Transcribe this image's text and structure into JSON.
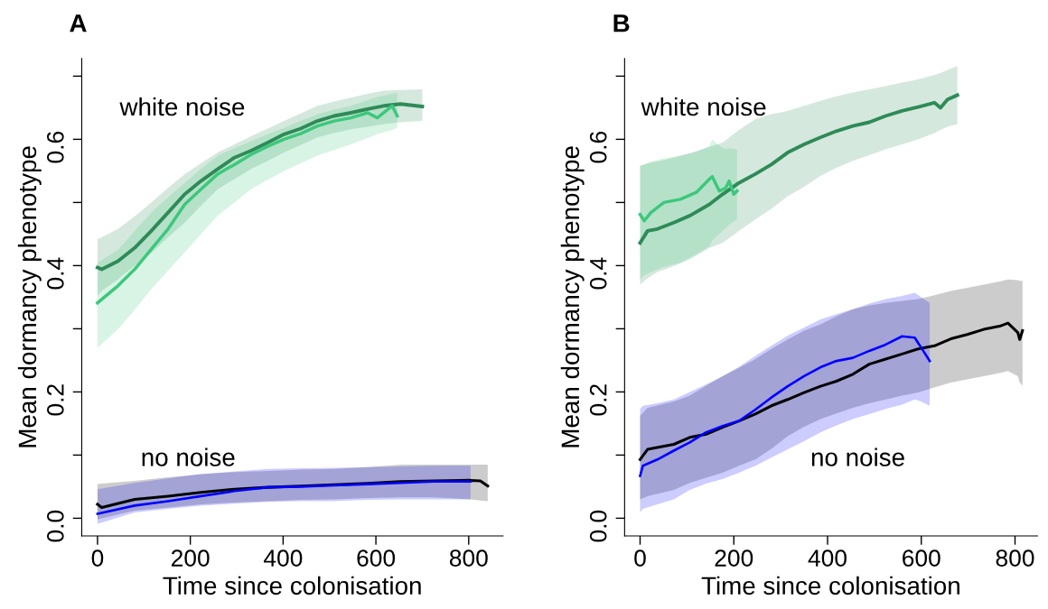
{
  "chart_data": [
    {
      "type": "line",
      "title": "A",
      "xlabel": "Time since colonisation",
      "ylabel": "Mean dormancy phenotype",
      "xlim": [
        -34,
        874
      ],
      "ylim": [
        -0.028,
        0.728
      ],
      "xticks": [
        0,
        200,
        400,
        600,
        800
      ],
      "yticks": [
        {
          "value": 0,
          "label": "0.0"
        },
        {
          "value": 0.1,
          "label": null
        },
        {
          "value": 0.2,
          "label": "0.2"
        },
        {
          "value": 0.3,
          "label": null
        },
        {
          "value": 0.4,
          "label": "0.4"
        },
        {
          "value": 0.5,
          "label": null
        },
        {
          "value": 0.6,
          "label": "0.6"
        },
        {
          "value": 0.7,
          "label": null
        }
      ],
      "grid": false,
      "legend": false,
      "annotations": [
        "white noise",
        "no noise"
      ],
      "series": [
        {
          "color": "#2e8b57",
          "x": [
            0,
            9,
            44,
            80,
            116,
            152,
            188,
            223,
            259,
            295,
            331,
            367,
            402,
            438,
            474,
            510,
            546,
            582,
            617,
            653,
            700
          ],
          "values": [
            0.397,
            0.394,
            0.407,
            0.428,
            0.455,
            0.484,
            0.513,
            0.534,
            0.553,
            0.571,
            0.582,
            0.595,
            0.608,
            0.617,
            0.629,
            0.637,
            0.642,
            0.648,
            0.653,
            0.656,
            0.652
          ],
          "lower": [
            0.352,
            0.36,
            0.378,
            0.4,
            0.42,
            0.445,
            0.468,
            0.495,
            0.521,
            0.537,
            0.553,
            0.566,
            0.579,
            0.591,
            0.603,
            0.61,
            0.616,
            0.62,
            0.624,
            0.627,
            0.629
          ],
          "upper": [
            0.442,
            0.445,
            0.458,
            0.478,
            0.5,
            0.523,
            0.545,
            0.562,
            0.579,
            0.592,
            0.605,
            0.617,
            0.629,
            0.641,
            0.653,
            0.66,
            0.666,
            0.672,
            0.677,
            0.678,
            0.679
          ]
        },
        {
          "color": "#3cc87c",
          "x": [
            0,
            44,
            80,
            116,
            152,
            188,
            223,
            259,
            295,
            331,
            367,
            402,
            438,
            474,
            510,
            546,
            582,
            603,
            635,
            646
          ],
          "values": [
            0.341,
            0.368,
            0.394,
            0.426,
            0.458,
            0.497,
            0.521,
            0.545,
            0.56,
            0.576,
            0.589,
            0.6,
            0.609,
            0.621,
            0.629,
            0.634,
            0.642,
            0.634,
            0.653,
            0.637
          ],
          "lower": [
            0.27,
            0.299,
            0.33,
            0.363,
            0.392,
            0.421,
            0.45,
            0.479,
            0.5,
            0.521,
            0.536,
            0.55,
            0.562,
            0.574,
            0.583,
            0.592,
            0.602,
            0.608,
            0.615,
            0.618
          ],
          "upper": [
            0.405,
            0.425,
            0.455,
            0.484,
            0.508,
            0.531,
            0.553,
            0.574,
            0.586,
            0.597,
            0.608,
            0.618,
            0.629,
            0.64,
            0.647,
            0.653,
            0.662,
            0.667,
            0.672,
            0.674
          ]
        },
        {
          "color": "#000000",
          "x": [
            0,
            9,
            80,
            152,
            223,
            295,
            367,
            438,
            510,
            582,
            653,
            725,
            804,
            825,
            841
          ],
          "values": [
            0.022,
            0.017,
            0.03,
            0.035,
            0.041,
            0.046,
            0.049,
            0.051,
            0.053,
            0.055,
            0.058,
            0.059,
            0.06,
            0.059,
            0.051
          ],
          "lower": [
            -0.002,
            0.0,
            0.012,
            0.017,
            0.022,
            0.025,
            0.027,
            0.029,
            0.03,
            0.032,
            0.033,
            0.033,
            0.03,
            0.028,
            0.027
          ],
          "upper": [
            0.054,
            0.055,
            0.059,
            0.065,
            0.07,
            0.073,
            0.075,
            0.077,
            0.078,
            0.081,
            0.085,
            0.085,
            0.085,
            0.085,
            0.085
          ]
        },
        {
          "color": "#0000ff",
          "x": [
            0,
            80,
            152,
            223,
            295,
            367,
            438,
            510,
            582,
            653,
            725,
            804
          ],
          "values": [
            0.007,
            0.02,
            0.027,
            0.035,
            0.043,
            0.049,
            0.05,
            0.052,
            0.054,
            0.056,
            0.058,
            0.058
          ],
          "lower": [
            -0.009,
            0.009,
            0.015,
            0.02,
            0.023,
            0.026,
            0.027,
            0.027,
            0.029,
            0.03,
            0.03,
            0.03
          ],
          "upper": [
            0.046,
            0.056,
            0.063,
            0.07,
            0.074,
            0.078,
            0.079,
            0.08,
            0.081,
            0.082,
            0.083,
            0.083
          ]
        }
      ]
    },
    {
      "type": "line",
      "title": "B",
      "xlabel": "Time since colonisation",
      "ylabel": "Mean dormancy phenotype",
      "xlim": [
        -33,
        848
      ],
      "ylim": [
        -0.028,
        0.728
      ],
      "xticks": [
        0,
        200,
        400,
        600,
        800
      ],
      "yticks": [
        {
          "value": 0,
          "label": "0.0"
        },
        {
          "value": 0.1,
          "label": null
        },
        {
          "value": 0.2,
          "label": "0.2"
        },
        {
          "value": 0.3,
          "label": null
        },
        {
          "value": 0.4,
          "label": "0.4"
        },
        {
          "value": 0.5,
          "label": null
        },
        {
          "value": 0.6,
          "label": "0.6"
        },
        {
          "value": 0.7,
          "label": null
        }
      ],
      "grid": false,
      "legend": false,
      "annotations": [
        "white noise",
        "no noise"
      ],
      "series": [
        {
          "color": "#2e8b57",
          "x": [
            0,
            16,
            37,
            72,
            106,
            148,
            176,
            211,
            246,
            280,
            315,
            350,
            385,
            419,
            454,
            489,
            524,
            559,
            593,
            628,
            641,
            656,
            677
          ],
          "values": [
            0.436,
            0.455,
            0.458,
            0.468,
            0.479,
            0.497,
            0.513,
            0.531,
            0.545,
            0.56,
            0.579,
            0.592,
            0.603,
            0.613,
            0.621,
            0.627,
            0.637,
            0.645,
            0.651,
            0.658,
            0.65,
            0.663,
            0.67
          ],
          "lower": [
            0.37,
            0.38,
            0.39,
            0.399,
            0.41,
            0.428,
            0.436,
            0.455,
            0.473,
            0.49,
            0.51,
            0.525,
            0.542,
            0.555,
            0.566,
            0.575,
            0.584,
            0.592,
            0.6,
            0.61,
            0.615,
            0.62,
            0.624
          ],
          "upper": [
            0.558,
            0.562,
            0.565,
            0.571,
            0.578,
            0.588,
            0.595,
            0.615,
            0.632,
            0.64,
            0.645,
            0.653,
            0.661,
            0.668,
            0.674,
            0.679,
            0.684,
            0.69,
            0.695,
            0.702,
            0.705,
            0.71,
            0.716
          ]
        },
        {
          "color": "#3cc87c",
          "x": [
            0,
            9,
            23,
            51,
            86,
            120,
            148,
            154,
            169,
            183,
            190,
            200,
            207
          ],
          "values": [
            0.481,
            0.471,
            0.484,
            0.5,
            0.505,
            0.516,
            0.537,
            0.541,
            0.518,
            0.523,
            0.534,
            0.513,
            0.518
          ],
          "lower": [
            0.378,
            0.385,
            0.39,
            0.398,
            0.405,
            0.418,
            0.431,
            0.44,
            0.45,
            0.46,
            0.465,
            0.47,
            0.473
          ],
          "upper": [
            0.558,
            0.56,
            0.565,
            0.57,
            0.574,
            0.58,
            0.589,
            0.6,
            0.59,
            0.585,
            0.586,
            0.585,
            0.584
          ]
        },
        {
          "color": "#000000",
          "x": [
            0,
            16,
            72,
            106,
            141,
            176,
            211,
            246,
            280,
            315,
            350,
            385,
            419,
            454,
            489,
            524,
            559,
            593,
            628,
            663,
            698,
            733,
            767,
            785,
            806,
            810,
            816
          ],
          "values": [
            0.093,
            0.109,
            0.117,
            0.128,
            0.133,
            0.144,
            0.154,
            0.165,
            0.178,
            0.188,
            0.199,
            0.209,
            0.217,
            0.228,
            0.244,
            0.252,
            0.26,
            0.268,
            0.273,
            0.284,
            0.291,
            0.299,
            0.304,
            0.309,
            0.294,
            0.283,
            0.297
          ],
          "lower": [
            0.03,
            0.035,
            0.045,
            0.056,
            0.064,
            0.072,
            0.083,
            0.093,
            0.11,
            0.13,
            0.145,
            0.157,
            0.166,
            0.175,
            0.182,
            0.188,
            0.194,
            0.199,
            0.207,
            0.215,
            0.22,
            0.225,
            0.23,
            0.233,
            0.225,
            0.215,
            0.21
          ],
          "upper": [
            0.162,
            0.175,
            0.185,
            0.194,
            0.21,
            0.225,
            0.238,
            0.252,
            0.268,
            0.283,
            0.297,
            0.307,
            0.32,
            0.331,
            0.337,
            0.341,
            0.344,
            0.347,
            0.353,
            0.36,
            0.365,
            0.37,
            0.375,
            0.378,
            0.377,
            0.376,
            0.376
          ]
        },
        {
          "color": "#0000ff",
          "x": [
            0,
            6,
            37,
            72,
            106,
            141,
            176,
            211,
            246,
            280,
            315,
            350,
            385,
            419,
            454,
            489,
            524,
            559,
            586,
            600,
            618
          ],
          "values": [
            0.067,
            0.083,
            0.093,
            0.107,
            0.12,
            0.136,
            0.146,
            0.154,
            0.172,
            0.191,
            0.209,
            0.225,
            0.239,
            0.249,
            0.254,
            0.265,
            0.275,
            0.288,
            0.286,
            0.27,
            0.249
          ],
          "lower": [
            0.009,
            0.015,
            0.022,
            0.03,
            0.045,
            0.055,
            0.062,
            0.072,
            0.083,
            0.096,
            0.109,
            0.122,
            0.136,
            0.147,
            0.157,
            0.165,
            0.173,
            0.18,
            0.188,
            0.185,
            0.178
          ],
          "upper": [
            0.173,
            0.178,
            0.182,
            0.188,
            0.2,
            0.212,
            0.225,
            0.24,
            0.257,
            0.273,
            0.289,
            0.302,
            0.315,
            0.323,
            0.331,
            0.34,
            0.347,
            0.352,
            0.357,
            0.35,
            0.341
          ]
        }
      ]
    }
  ]
}
